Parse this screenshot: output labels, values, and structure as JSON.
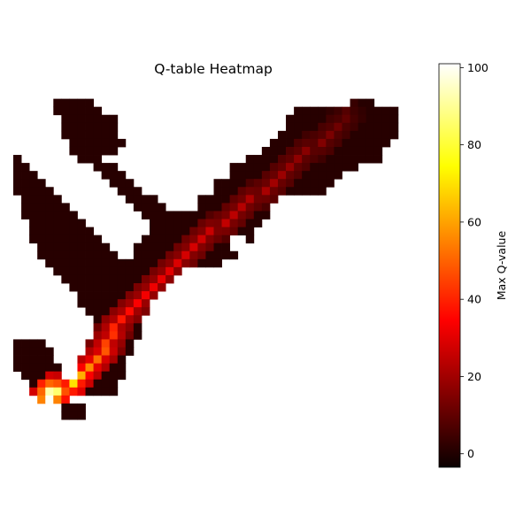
{
  "chart_data": {
    "type": "heatmap",
    "title": "Q-table Heatmap",
    "colormap": "hot",
    "axes_visible": false,
    "colorbar": {
      "label": "Max Q-value",
      "vmin": -3.5,
      "vmax": 101,
      "ticks": [
        "0",
        "20",
        "40",
        "60",
        "80",
        "100"
      ]
    },
    "grid": {
      "cols": 50,
      "rows": 42,
      "origin": "top",
      "background_value": 0,
      "default_cell_value": 1,
      "region_rows": [
        [
          2,
          5,
          9,
          42,
          44
        ],
        [
          3,
          5,
          10,
          35,
          47
        ],
        [
          4,
          6,
          12,
          34,
          47
        ],
        [
          5,
          6,
          12,
          34,
          47
        ],
        [
          6,
          6,
          12,
          33,
          47
        ],
        [
          7,
          7,
          13,
          32,
          46
        ],
        [
          8,
          7,
          12,
          31,
          45
        ],
        [
          9,
          0,
          0,
          8,
          10,
          29,
          45
        ],
        [
          10,
          0,
          1,
          10,
          12,
          27,
          42
        ],
        [
          11,
          0,
          2,
          11,
          13,
          27,
          40
        ],
        [
          12,
          0,
          3,
          12,
          14,
          25,
          39
        ],
        [
          13,
          0,
          4,
          13,
          15,
          25,
          38
        ],
        [
          14,
          1,
          5,
          14,
          17,
          23,
          32
        ],
        [
          15,
          1,
          6,
          15,
          18,
          23,
          31
        ],
        [
          16,
          1,
          7,
          16,
          31
        ],
        [
          17,
          2,
          8,
          17,
          30
        ],
        [
          18,
          2,
          9,
          17,
          29
        ],
        [
          19,
          2,
          10,
          16,
          29
        ],
        [
          20,
          3,
          11,
          15,
          28
        ],
        [
          21,
          3,
          12,
          15,
          27
        ],
        [
          22,
          4,
          14,
          15,
          25
        ],
        [
          23,
          5,
          20
        ],
        [
          24,
          6,
          19
        ],
        [
          25,
          7,
          18
        ],
        [
          26,
          8,
          17
        ],
        [
          27,
          8,
          16
        ],
        [
          28,
          9,
          16
        ],
        [
          29,
          10,
          15
        ],
        [
          30,
          10,
          15
        ],
        [
          31,
          10,
          15
        ],
        [
          32,
          0,
          3,
          9,
          14
        ],
        [
          33,
          0,
          4,
          9,
          14
        ],
        [
          34,
          0,
          5,
          8,
          13
        ],
        [
          35,
          0,
          5,
          8,
          13
        ],
        [
          36,
          1,
          5,
          8,
          13
        ],
        [
          37,
          2,
          12
        ],
        [
          38,
          2,
          12
        ],
        [
          39,
          3,
          6
        ],
        [
          40,
          6,
          8
        ],
        [
          41,
          6,
          8
        ]
      ],
      "holes": [
        [
          4,
          25,
          3,
          2
        ],
        [
          19,
          27,
          2,
          2
        ],
        [
          22,
          27,
          2,
          2
        ],
        [
          33,
          5,
          3,
          2
        ],
        [
          11,
          20,
          1,
          2
        ],
        [
          13,
          18,
          1,
          2
        ]
      ],
      "trail": [
        [
          3,
          41,
          8
        ],
        [
          4,
          41,
          10
        ],
        [
          5,
          40,
          12
        ],
        [
          6,
          39,
          14
        ],
        [
          7,
          38,
          15
        ],
        [
          8,
          36,
          16
        ],
        [
          9,
          35,
          17
        ],
        [
          10,
          34,
          18
        ],
        [
          11,
          33,
          19
        ],
        [
          12,
          32,
          20
        ],
        [
          13,
          31,
          21
        ],
        [
          14,
          29,
          22
        ],
        [
          15,
          28,
          23
        ],
        [
          16,
          27,
          24
        ],
        [
          17,
          26,
          25
        ],
        [
          18,
          24,
          26
        ],
        [
          19,
          23,
          27
        ],
        [
          20,
          22,
          28
        ],
        [
          21,
          21,
          28
        ],
        [
          22,
          20,
          29
        ],
        [
          23,
          19,
          30
        ],
        [
          24,
          18,
          31
        ],
        [
          25,
          17,
          32
        ],
        [
          26,
          16,
          33
        ],
        [
          27,
          15,
          34
        ],
        [
          28,
          14,
          36
        ],
        [
          29,
          13,
          38
        ],
        [
          30,
          12,
          40
        ],
        [
          31,
          12,
          42
        ],
        [
          32,
          11,
          45
        ],
        [
          33,
          11,
          48
        ],
        [
          34,
          10,
          52
        ],
        [
          35,
          9,
          56
        ],
        [
          36,
          8,
          62
        ],
        [
          37,
          7,
          70
        ],
        [
          38,
          5,
          86
        ],
        [
          38,
          4,
          92
        ],
        [
          39,
          4,
          100
        ]
      ],
      "spread": 2.2,
      "spread_decay": 0.55
    }
  }
}
